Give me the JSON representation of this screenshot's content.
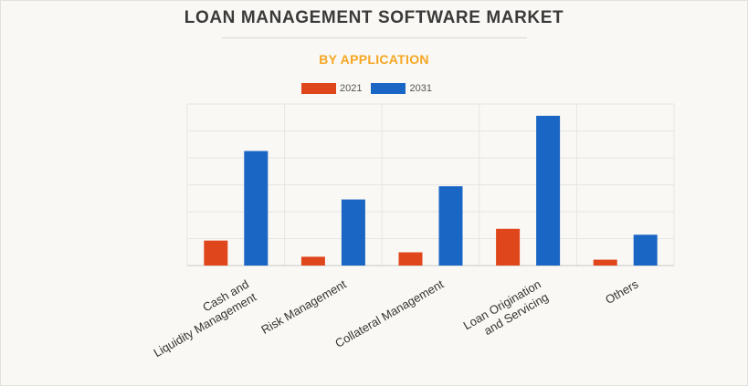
{
  "title": "LOAN MANAGEMENT SOFTWARE MARKET",
  "subtitle": "BY APPLICATION",
  "colors": {
    "subtitle": "#f5a623",
    "series_2021": "#e0461c",
    "series_2031": "#1a66c4"
  },
  "chart_data": {
    "type": "bar",
    "title": "LOAN MANAGEMENT SOFTWARE MARKET",
    "subtitle": "BY APPLICATION",
    "categories": [
      [
        "Cash and",
        "Liquidity Management"
      ],
      [
        "Risk Management"
      ],
      [
        "Collateral Management"
      ],
      [
        "Loan Origination",
        "and Servicing"
      ],
      [
        "Others"
      ]
    ],
    "series": [
      {
        "name": "2021",
        "values": [
          1.7,
          0.6,
          0.9,
          2.5,
          0.4
        ]
      },
      {
        "name": "2031",
        "values": [
          7.8,
          4.5,
          5.4,
          10.2,
          2.1
        ]
      }
    ],
    "ylim": [
      0,
      11
    ],
    "grid": true,
    "legend": "top-center",
    "xlabel": "",
    "ylabel": ""
  }
}
